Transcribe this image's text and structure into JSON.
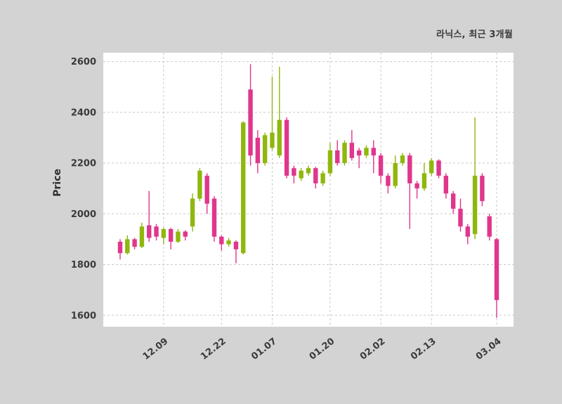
{
  "header": {
    "title": "라닉스, 최근 3개월"
  },
  "axes": {
    "ylabel": "Price"
  },
  "colors": {
    "background": "#d3d3d3",
    "plot_bg": "#ffffff",
    "grid": "#c9c9c9",
    "text": "#3a3a3a",
    "up": "#8fb70e",
    "down": "#e0368c"
  },
  "chart_data": {
    "type": "candlestick",
    "title": "라닉스, 최근 3개월",
    "ylabel": "Price",
    "ylim": [
      1555,
      2635
    ],
    "yticks": [
      1600,
      1800,
      2000,
      2200,
      2400,
      2600
    ],
    "xticks": [
      {
        "index": 6,
        "label": "12.09"
      },
      {
        "index": 14,
        "label": "12.22"
      },
      {
        "index": 21,
        "label": "01.07"
      },
      {
        "index": 29,
        "label": "01.20"
      },
      {
        "index": 36,
        "label": "02.02"
      },
      {
        "index": 43,
        "label": "02.13"
      },
      {
        "index": 52,
        "label": "03.04"
      }
    ],
    "grid": "dashed",
    "legend": "none",
    "ohlc_note": "values are [open, high, low, close] in KRW, estimated from plot",
    "ohlc": [
      [
        1890,
        1900,
        1820,
        1845
      ],
      [
        1845,
        1915,
        1840,
        1900
      ],
      [
        1900,
        1905,
        1860,
        1870
      ],
      [
        1870,
        1965,
        1865,
        1950
      ],
      [
        1955,
        2090,
        1890,
        1905
      ],
      [
        1950,
        1960,
        1895,
        1910
      ],
      [
        1905,
        1945,
        1880,
        1940
      ],
      [
        1940,
        1945,
        1860,
        1890
      ],
      [
        1890,
        1940,
        1885,
        1930
      ],
      [
        1930,
        1935,
        1895,
        1910
      ],
      [
        1950,
        2080,
        1930,
        2060
      ],
      [
        2060,
        2180,
        2050,
        2170
      ],
      [
        2150,
        2160,
        2000,
        2040
      ],
      [
        2060,
        2070,
        1890,
        1910
      ],
      [
        1910,
        1915,
        1855,
        1880
      ],
      [
        1880,
        1905,
        1870,
        1895
      ],
      [
        1890,
        1895,
        1805,
        1860
      ],
      [
        1845,
        2365,
        1840,
        2360
      ],
      [
        2490,
        2590,
        2190,
        2230
      ],
      [
        2300,
        2330,
        2160,
        2200
      ],
      [
        2200,
        2320,
        2190,
        2310
      ],
      [
        2260,
        2540,
        2250,
        2320
      ],
      [
        2230,
        2580,
        2220,
        2370
      ],
      [
        2370,
        2380,
        2140,
        2150
      ],
      [
        2180,
        2190,
        2120,
        2150
      ],
      [
        2140,
        2180,
        2130,
        2170
      ],
      [
        2160,
        2190,
        2150,
        2180
      ],
      [
        2180,
        2185,
        2100,
        2120
      ],
      [
        2120,
        2170,
        2110,
        2160
      ],
      [
        2160,
        2280,
        2150,
        2250
      ],
      [
        2250,
        2290,
        2190,
        2200
      ],
      [
        2200,
        2290,
        2190,
        2280
      ],
      [
        2280,
        2330,
        2210,
        2220
      ],
      [
        2250,
        2260,
        2180,
        2230
      ],
      [
        2230,
        2270,
        2220,
        2260
      ],
      [
        2260,
        2290,
        2160,
        2230
      ],
      [
        2230,
        2240,
        2120,
        2150
      ],
      [
        2150,
        2160,
        2080,
        2110
      ],
      [
        2110,
        2230,
        2100,
        2200
      ],
      [
        2200,
        2240,
        2190,
        2230
      ],
      [
        2230,
        2240,
        1940,
        2120
      ],
      [
        2120,
        2130,
        2060,
        2100
      ],
      [
        2100,
        2200,
        2090,
        2160
      ],
      [
        2160,
        2220,
        2150,
        2210
      ],
      [
        2210,
        2215,
        2140,
        2150
      ],
      [
        2150,
        2160,
        2060,
        2080
      ],
      [
        2080,
        2090,
        2000,
        2020
      ],
      [
        2020,
        2060,
        1930,
        1950
      ],
      [
        1950,
        1960,
        1880,
        1910
      ],
      [
        1920,
        2380,
        1900,
        2150
      ],
      [
        2150,
        2160,
        2030,
        2050
      ],
      [
        1990,
        2000,
        1895,
        1910
      ],
      [
        1900,
        1905,
        1590,
        1660
      ]
    ]
  }
}
